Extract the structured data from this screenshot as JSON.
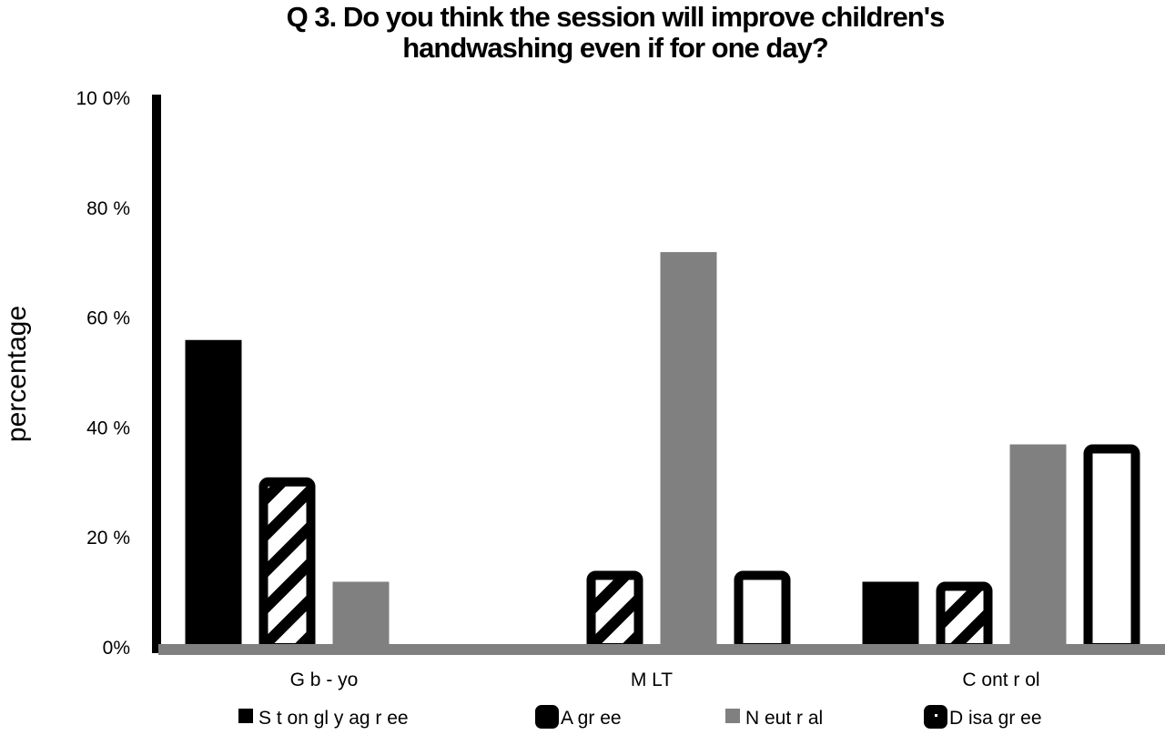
{
  "chart_data": {
    "type": "bar",
    "title_lines": [
      "Q 3. Do you think the session will improve children's",
      "handwashing even if for one day?"
    ],
    "ylabel": "percentage",
    "xlabel": "",
    "ylim": [
      0,
      100
    ],
    "yticks": [
      0,
      20,
      40,
      60,
      80,
      100
    ],
    "ytick_labels": [
      "0%",
      "20  %",
      "40  %",
      "60  %",
      "80  %",
      "10  0%"
    ],
    "categories": [
      "G b  - yo",
      "M LT",
      "C ont r ol"
    ],
    "series": [
      {
        "name": "S t on gl y  ag r ee",
        "values": [
          56,
          0,
          12
        ],
        "color": "#000000",
        "style": "solid"
      },
      {
        "name": "A gr ee",
        "values": [
          31,
          14,
          12
        ],
        "color": "#000000",
        "style": "hatched"
      },
      {
        "name": "N eut r al",
        "values": [
          12,
          72,
          37
        ],
        "color": "#808080",
        "style": "solid"
      },
      {
        "name": "D isa gr ee",
        "values": [
          0,
          14,
          37
        ],
        "color": "#000000",
        "style": "outline"
      }
    ],
    "legend_position": "bottom",
    "grid": false
  }
}
